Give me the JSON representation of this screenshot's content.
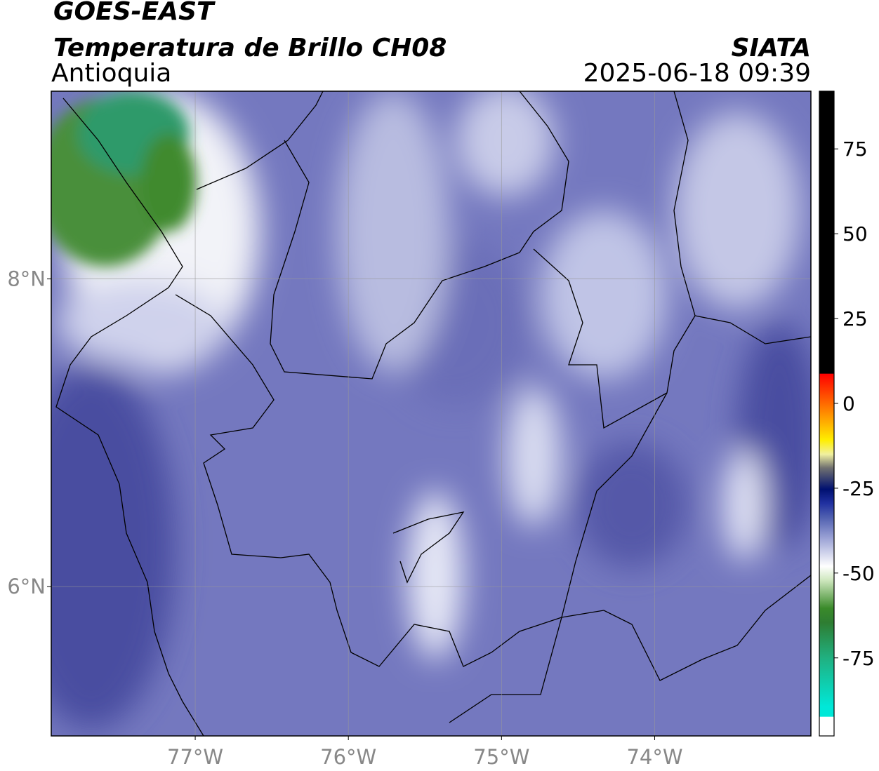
{
  "map": {
    "title": "GOES-EAST",
    "subtitle": "Temperatura de Brillo CH08",
    "region": "Antioquia",
    "source": "SIATA",
    "timestamp": "2025-06-18 09:39",
    "xlim": [
      -77.94,
      -72.98
    ],
    "ylim": [
      5.03,
      9.22
    ],
    "xticks": [
      {
        "value": -77,
        "label": "77°W"
      },
      {
        "value": -76,
        "label": "76°W"
      },
      {
        "value": -75,
        "label": "75°W"
      },
      {
        "value": -74,
        "label": "74°W"
      }
    ],
    "yticks": [
      {
        "value": 8,
        "label": "8°N"
      },
      {
        "value": 6,
        "label": "6°N"
      }
    ],
    "grid": true,
    "colorbar": {
      "lim": [
        -98,
        92
      ],
      "ticks": [
        75,
        50,
        25,
        0,
        -25,
        -50,
        -75
      ],
      "stops": [
        {
          "value": -98,
          "color": "#ffffff"
        },
        {
          "value": -92.4,
          "color": "#ffffff"
        },
        {
          "value": -92.3,
          "color": "#00e8d8"
        },
        {
          "value": -89.4,
          "color": "#00e8d8"
        },
        {
          "value": -75,
          "color": "#20b080"
        },
        {
          "value": -64.6,
          "color": "#2e7d32"
        },
        {
          "value": -60.4,
          "color": "#3a8a2a"
        },
        {
          "value": -52,
          "color": "#d0e8c0"
        },
        {
          "value": -48,
          "color": "#ffffff"
        },
        {
          "value": -39.8,
          "color": "#9ca3d6"
        },
        {
          "value": -33.6,
          "color": "#5060b0"
        },
        {
          "value": -29.4,
          "color": "#2030a0"
        },
        {
          "value": -25.3,
          "color": "#001070"
        },
        {
          "value": -19,
          "color": "#707070"
        },
        {
          "value": -15,
          "color": "#f0f0a0"
        },
        {
          "value": -10.8,
          "color": "#ffee00"
        },
        {
          "value": -2.5,
          "color": "#ff8800"
        },
        {
          "value": 8.7,
          "color": "#ff0000"
        },
        {
          "value": 8.8,
          "color": "#000000"
        },
        {
          "value": 92,
          "color": "#000000"
        }
      ]
    }
  }
}
